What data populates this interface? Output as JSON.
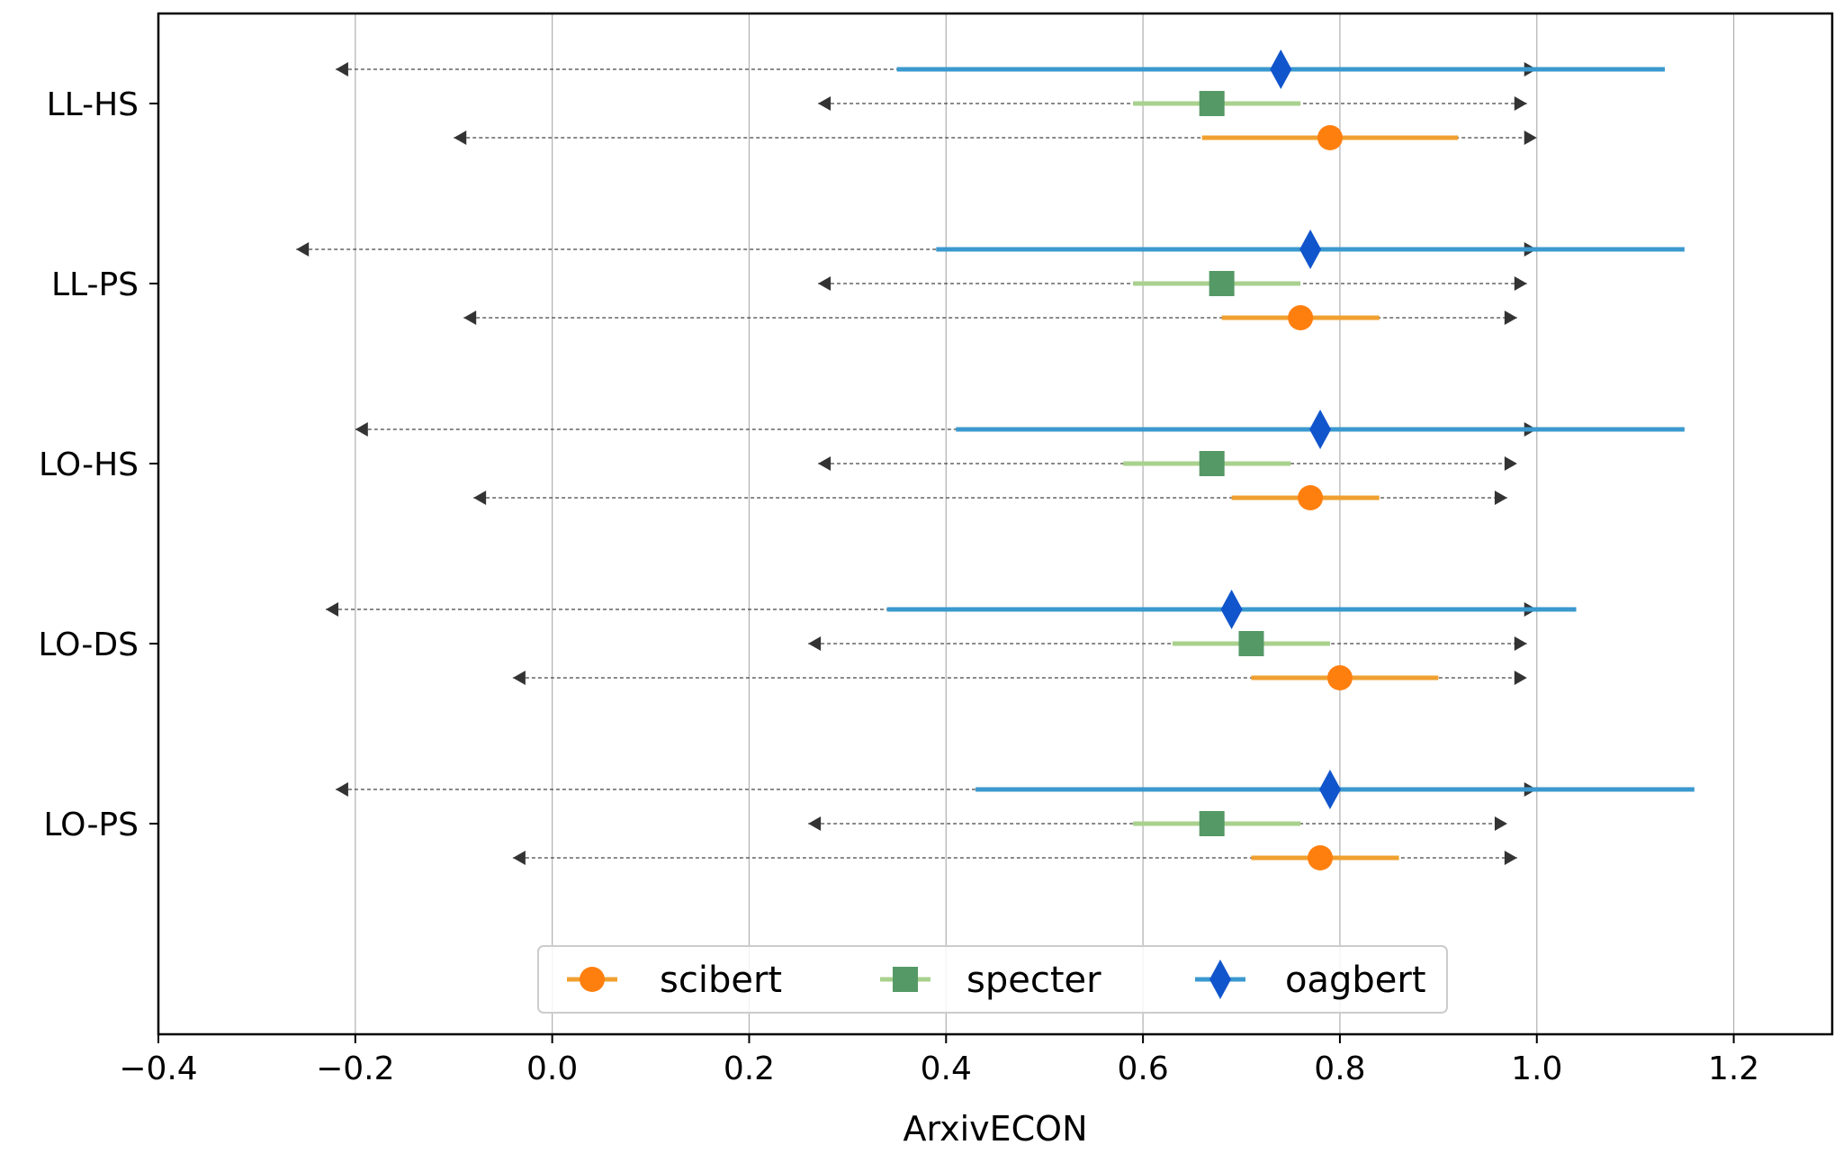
{
  "chart_data": {
    "type": "interval",
    "xlabel": "ArxivECON",
    "xlim": [
      -0.4,
      1.3
    ],
    "xticks": [
      -0.4,
      -0.2,
      0.0,
      0.2,
      0.4,
      0.6,
      0.8,
      1.0,
      1.2
    ],
    "xtick_labels": [
      "−0.4",
      "−0.2",
      "0.0",
      "0.2",
      "0.4",
      "0.6",
      "0.8",
      "1.0",
      "1.2"
    ],
    "grid": "vertical",
    "legend_position": "bottom-center",
    "categories": [
      "LL-HS",
      "LL-PS",
      "LO-HS",
      "LO-DS",
      "LO-PS"
    ],
    "series": [
      {
        "name": "oagbert",
        "marker": "diamond",
        "color": "#1155cc",
        "bar_color": "#3b99cf",
        "points": [
          {
            "category": "LL-HS",
            "value": 0.74,
            "ci": [
              0.35,
              1.13
            ],
            "range": [
              -0.22,
              1.0
            ]
          },
          {
            "category": "LL-PS",
            "value": 0.77,
            "ci": [
              0.39,
              1.15
            ],
            "range": [
              -0.26,
              1.0
            ]
          },
          {
            "category": "LO-HS",
            "value": 0.78,
            "ci": [
              0.41,
              1.15
            ],
            "range": [
              -0.2,
              1.0
            ]
          },
          {
            "category": "LO-DS",
            "value": 0.69,
            "ci": [
              0.34,
              1.04
            ],
            "range": [
              -0.23,
              1.0
            ]
          },
          {
            "category": "LO-PS",
            "value": 0.79,
            "ci": [
              0.43,
              1.16
            ],
            "range": [
              -0.22,
              1.0
            ]
          }
        ]
      },
      {
        "name": "specter",
        "marker": "square",
        "color": "#559966",
        "bar_color": "#a9d18e",
        "points": [
          {
            "category": "LL-HS",
            "value": 0.67,
            "ci": [
              0.59,
              0.76
            ],
            "range": [
              0.27,
              0.99
            ]
          },
          {
            "category": "LL-PS",
            "value": 0.68,
            "ci": [
              0.59,
              0.76
            ],
            "range": [
              0.27,
              0.99
            ]
          },
          {
            "category": "LO-HS",
            "value": 0.67,
            "ci": [
              0.58,
              0.75
            ],
            "range": [
              0.27,
              0.98
            ]
          },
          {
            "category": "LO-DS",
            "value": 0.71,
            "ci": [
              0.63,
              0.79
            ],
            "range": [
              0.26,
              0.99
            ]
          },
          {
            "category": "LO-PS",
            "value": 0.67,
            "ci": [
              0.59,
              0.76
            ],
            "range": [
              0.26,
              0.97
            ]
          }
        ]
      },
      {
        "name": "scibert",
        "marker": "circle",
        "color": "#ff7f0e",
        "bar_color": "#f0a030",
        "points": [
          {
            "category": "LL-HS",
            "value": 0.79,
            "ci": [
              0.66,
              0.92
            ],
            "range": [
              -0.1,
              1.0
            ]
          },
          {
            "category": "LL-PS",
            "value": 0.76,
            "ci": [
              0.68,
              0.84
            ],
            "range": [
              -0.09,
              0.98
            ]
          },
          {
            "category": "LO-HS",
            "value": 0.77,
            "ci": [
              0.69,
              0.84
            ],
            "range": [
              -0.08,
              0.97
            ]
          },
          {
            "category": "LO-DS",
            "value": 0.8,
            "ci": [
              0.71,
              0.9
            ],
            "range": [
              -0.04,
              0.99
            ]
          },
          {
            "category": "LO-PS",
            "value": 0.78,
            "ci": [
              0.71,
              0.86
            ],
            "range": [
              -0.04,
              0.98
            ]
          }
        ]
      }
    ],
    "legend": [
      "scibert",
      "specter",
      "oagbert"
    ]
  }
}
